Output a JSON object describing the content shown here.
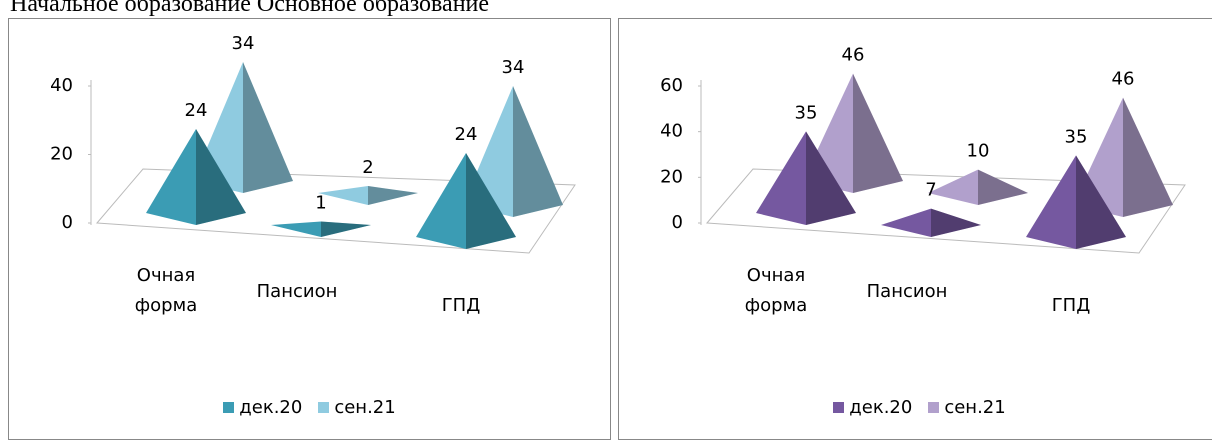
{
  "heading": "Начальное образование Основное образование",
  "chart_data": [
    {
      "type": "pyramid3d",
      "categories": [
        "Очная форма",
        "Пансион",
        "ГПД"
      ],
      "series": [
        {
          "name": "дек.20",
          "color": "#3b9cb4",
          "values": [
            24,
            1,
            24
          ]
        },
        {
          "name": "сен.21",
          "color": "#8fcbe0",
          "values": [
            34,
            2,
            34
          ]
        }
      ],
      "ylim": [
        0,
        40
      ],
      "yticks": [
        0,
        20,
        40
      ],
      "legend": "bottom"
    },
    {
      "type": "pyramid3d",
      "categories": [
        "Очная форма",
        "Пансион",
        "ГПД"
      ],
      "series": [
        {
          "name": "дек.20",
          "color": "#7558a0",
          "values": [
            35,
            7,
            35
          ]
        },
        {
          "name": "сен.21",
          "color": "#b1a0cc",
          "values": [
            46,
            10,
            46
          ]
        }
      ],
      "ylim": [
        0,
        60
      ],
      "yticks": [
        0,
        20,
        40,
        60
      ],
      "legend": "bottom"
    }
  ]
}
